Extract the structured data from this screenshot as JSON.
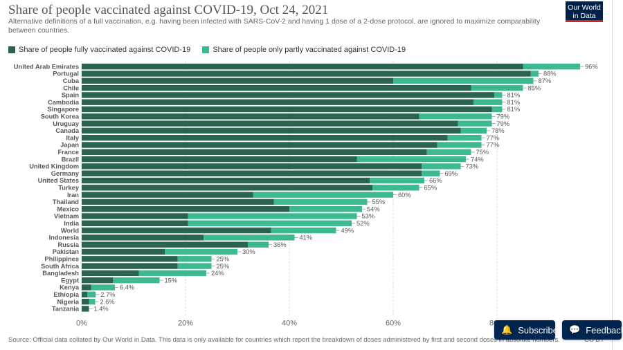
{
  "header": {
    "title": "Share of people vaccinated against COVID-19, Oct 24, 2021",
    "subtitle": "Alternative definitions of a full vaccination, e.g. having been infected with SARS-CoV-2 and having 1 dose of a 2-dose protocol, are ignored to maximize comparability between countries.",
    "logo_line1": "Our World",
    "logo_line2": "in Data"
  },
  "legend": {
    "full_label": "Share of people fully vaccinated against COVID-19",
    "partial_label": "Share of people only partly vaccinated against COVID-19"
  },
  "colors": {
    "full": "#2b6352",
    "partial": "#3cb98d",
    "logo_bg": "#002147",
    "button_bg": "#00264f"
  },
  "footer": {
    "source": "Source: Official data collated by Our World in Data. This data is only available for countries which report the breakdown of doses administered by first and second doses in absolute numbers.",
    "license": "CC BY"
  },
  "buttons": {
    "subscribe": "Subscribe",
    "feedback": "Feedback"
  },
  "icons": {
    "subscribe": "bell-icon",
    "feedback": "chat-icon"
  },
  "chart_data": {
    "type": "bar",
    "orientation": "horizontal",
    "stacked": true,
    "xlim": [
      0,
      100
    ],
    "x_ticks": [
      "0%",
      "20%",
      "40%",
      "60%",
      "80%"
    ],
    "grid": true,
    "categories": [
      "United Arab Emirates",
      "Portugal",
      "Cuba",
      "Chile",
      "Spain",
      "Cambodia",
      "Singapore",
      "South Korea",
      "Uruguay",
      "Canada",
      "Italy",
      "Japan",
      "France",
      "Brazil",
      "United Kingdom",
      "Germany",
      "United States",
      "Turkey",
      "Iran",
      "Thailand",
      "Mexico",
      "Vietnam",
      "India",
      "World",
      "Indonesia",
      "Russia",
      "Pakistan",
      "Philippines",
      "South Africa",
      "Bangladesh",
      "Egypt",
      "Kenya",
      "Ethiopia",
      "Nigeria",
      "Tanzania"
    ],
    "series": [
      {
        "name": "Share of people fully vaccinated against COVID-19",
        "values": [
          85.0,
          86.5,
          60.0,
          75.0,
          79.5,
          75.5,
          79.0,
          65.0,
          72.5,
          73.0,
          70.5,
          68.5,
          66.5,
          53.0,
          65.5,
          65.5,
          55.5,
          56.0,
          33.0,
          37.0,
          40.0,
          20.5,
          20.5,
          36.5,
          23.5,
          32.0,
          16.0,
          18.5,
          18.5,
          11.0,
          6.0,
          1.8,
          1.1,
          1.4,
          1.4
        ]
      },
      {
        "name": "Share of people only partly vaccinated against COVID-19",
        "values": [
          11.0,
          1.5,
          27.0,
          10.0,
          1.5,
          5.5,
          2.0,
          14.0,
          6.5,
          5.0,
          6.5,
          8.5,
          8.5,
          21.0,
          7.5,
          3.5,
          10.5,
          9.0,
          27.0,
          18.0,
          14.0,
          32.5,
          31.5,
          12.5,
          17.5,
          4.0,
          14.0,
          6.5,
          6.5,
          13.0,
          9.0,
          4.6,
          1.6,
          1.2,
          0.0
        ]
      }
    ],
    "labels": [
      "96%",
      "88%",
      "87%",
      "85%",
      "81%",
      "81%",
      "81%",
      "79%",
      "79%",
      "78%",
      "77%",
      "77%",
      "75%",
      "74%",
      "73%",
      "69%",
      "66%",
      "65%",
      "60%",
      "55%",
      "54%",
      "53%",
      "52%",
      "49%",
      "41%",
      "36%",
      "30%",
      "25%",
      "25%",
      "24%",
      "15%",
      "6.4%",
      "2.7%",
      "2.6%",
      "1.4%"
    ]
  }
}
